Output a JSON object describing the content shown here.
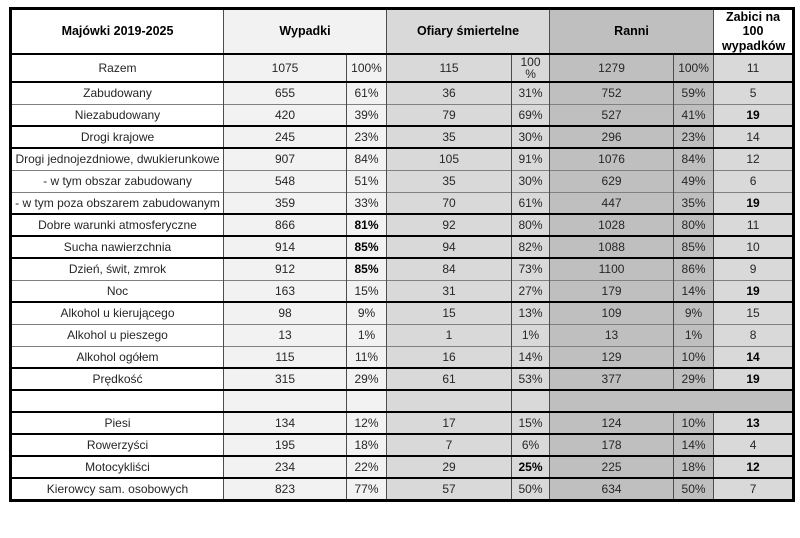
{
  "header": {
    "label": "Majówki 2019-2025",
    "wypadki": "Wypadki",
    "ofiary": "Ofiary śmiertelne",
    "ranni": "Ranni",
    "zabici": "Zabici na 100 wypadków"
  },
  "colors": {
    "col_wypadki": "#f2f2f2",
    "col_ofiary": "#d9d9d9",
    "col_ranni": "#bfbfbf",
    "col_zabici": "#d9d9d9",
    "border_thick": "#000000",
    "border_thin": "#808080",
    "text": "#262626",
    "text_bold": "#000000"
  },
  "chart_data": {
    "type": "table",
    "title": "Majówki 2019-2025",
    "columns": [
      "Majówki 2019-2025",
      "Wypadki",
      "Wypadki %",
      "Ofiary śmiertelne",
      "Ofiary śmiertelne %",
      "Ranni",
      "Ranni %",
      "Zabici na 100 wypadków"
    ],
    "rows": [
      {
        "label": "Razem",
        "cells": [
          "1075",
          "100%",
          "115",
          "100\n%",
          "1279",
          "100%",
          "11"
        ],
        "bold": [],
        "sep": "thick",
        "tall": true
      },
      {
        "label": "Zabudowany",
        "cells": [
          "655",
          "61%",
          "36",
          "31%",
          "752",
          "59%",
          "5"
        ],
        "bold": [],
        "sep": "thin"
      },
      {
        "label": "Niezabudowany",
        "cells": [
          "420",
          "39%",
          "79",
          "69%",
          "527",
          "41%",
          "19"
        ],
        "bold": [
          6
        ],
        "sep": "thick"
      },
      {
        "label": "Drogi krajowe",
        "cells": [
          "245",
          "23%",
          "35",
          "30%",
          "296",
          "23%",
          "14"
        ],
        "bold": [],
        "sep": "thick"
      },
      {
        "label": "Drogi jednojezdniowe, dwukierunkowe",
        "cells": [
          "907",
          "84%",
          "105",
          "91%",
          "1076",
          "84%",
          "12"
        ],
        "bold": [],
        "sep": "thin"
      },
      {
        "label": "- w tym obszar zabudowany",
        "cells": [
          "548",
          "51%",
          "35",
          "30%",
          "629",
          "49%",
          "6"
        ],
        "bold": [],
        "sep": "thin"
      },
      {
        "label": "- w tym poza obszarem zabudowanym",
        "cells": [
          "359",
          "33%",
          "70",
          "61%",
          "447",
          "35%",
          "19"
        ],
        "bold": [
          6
        ],
        "sep": "thick"
      },
      {
        "label": "Dobre warunki atmosferyczne",
        "cells": [
          "866",
          "81%",
          "92",
          "80%",
          "1028",
          "80%",
          "11"
        ],
        "bold": [
          1
        ],
        "sep": "thick"
      },
      {
        "label": "Sucha nawierzchnia",
        "cells": [
          "914",
          "85%",
          "94",
          "82%",
          "1088",
          "85%",
          "10"
        ],
        "bold": [
          1
        ],
        "sep": "thick"
      },
      {
        "label": "Dzień, świt, zmrok",
        "cells": [
          "912",
          "85%",
          "84",
          "73%",
          "1100",
          "86%",
          "9"
        ],
        "bold": [
          1
        ],
        "sep": "thin"
      },
      {
        "label": "Noc",
        "cells": [
          "163",
          "15%",
          "31",
          "27%",
          "179",
          "14%",
          "19"
        ],
        "bold": [
          6
        ],
        "sep": "thick"
      },
      {
        "label": "Alkohol u kierującego",
        "cells": [
          "98",
          "9%",
          "15",
          "13%",
          "109",
          "9%",
          "15"
        ],
        "bold": [],
        "sep": "thin"
      },
      {
        "label": "Alkohol u pieszego",
        "cells": [
          "13",
          "1%",
          "1",
          "1%",
          "13",
          "1%",
          "8"
        ],
        "bold": [],
        "sep": "thin"
      },
      {
        "label": "Alkohol ogółem",
        "cells": [
          "115",
          "11%",
          "16",
          "14%",
          "129",
          "10%",
          "14"
        ],
        "bold": [
          6
        ],
        "sep": "thick"
      },
      {
        "label": "Prędkość",
        "cells": [
          "315",
          "29%",
          "61",
          "53%",
          "377",
          "29%",
          "19"
        ],
        "bold": [
          6
        ],
        "sep": "thick"
      },
      {
        "label": "",
        "cells": [
          "",
          "",
          "",
          "",
          "",
          "",
          ""
        ],
        "bold": [],
        "sep": "thick",
        "empty": true
      },
      {
        "label": "Piesi",
        "cells": [
          "134",
          "12%",
          "17",
          "15%",
          "124",
          "10%",
          "13"
        ],
        "bold": [
          6
        ],
        "sep": "thick"
      },
      {
        "label": "Rowerzyści",
        "cells": [
          "195",
          "18%",
          "7",
          "6%",
          "178",
          "14%",
          "4"
        ],
        "bold": [],
        "sep": "thick"
      },
      {
        "label": "Motocykliści",
        "cells": [
          "234",
          "22%",
          "29",
          "25%",
          "225",
          "18%",
          "12"
        ],
        "bold": [
          3,
          6
        ],
        "sep": "thick"
      },
      {
        "label": "Kierowcy sam. osobowych",
        "cells": [
          "823",
          "77%",
          "57",
          "50%",
          "634",
          "50%",
          "7"
        ],
        "bold": [],
        "sep": "thick"
      }
    ]
  }
}
